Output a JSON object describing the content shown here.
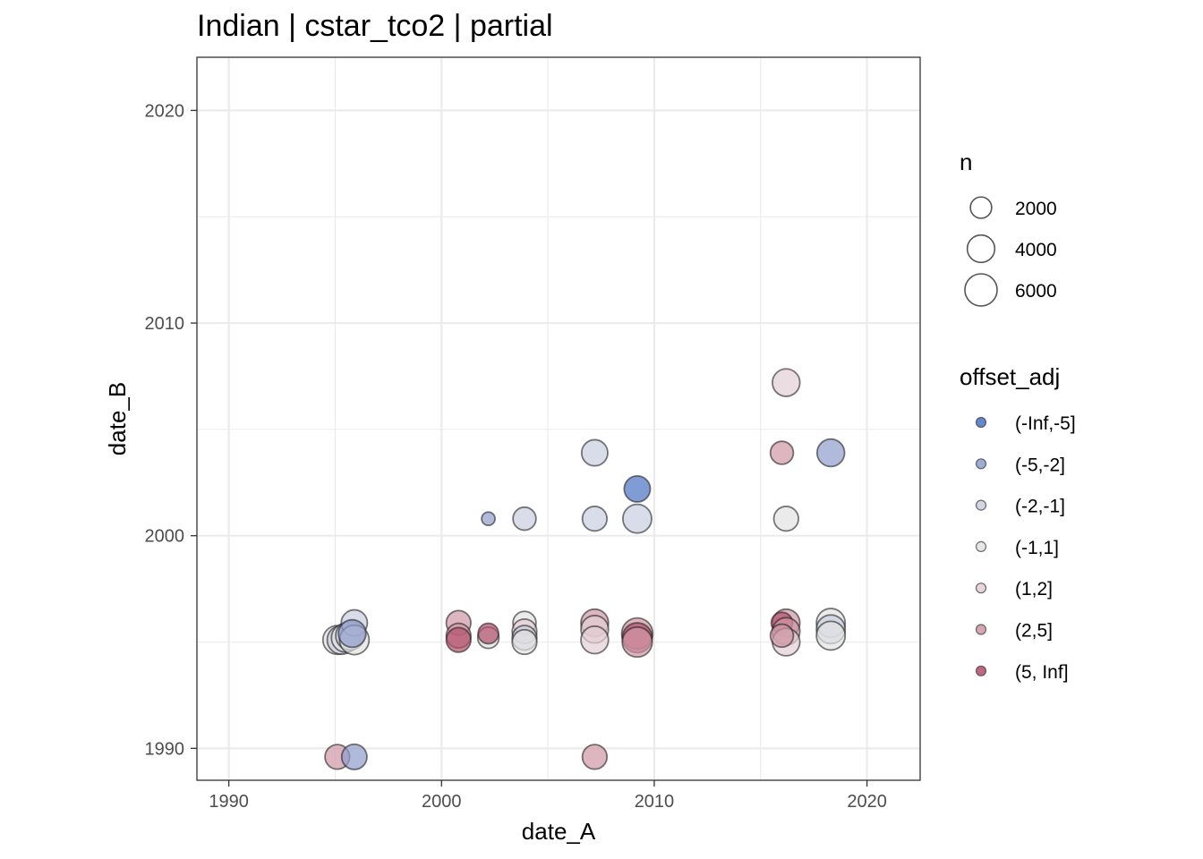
{
  "chart_data": {
    "type": "scatter",
    "title": "Indian | cstar_tco2 | partial",
    "xlabel": "date_A",
    "ylabel": "date_B",
    "xlim": [
      1988.5,
      2022.5
    ],
    "ylim": [
      1988.5,
      2022.5
    ],
    "x_ticks": [
      1990,
      2000,
      2010,
      2020
    ],
    "y_ticks": [
      1990,
      2000,
      2010,
      2020
    ],
    "grid": true,
    "size_legend": {
      "title": "n",
      "entries": [
        {
          "label": "2000",
          "value": 2000
        },
        {
          "label": "4000",
          "value": 4000
        },
        {
          "label": "6000",
          "value": 6000
        }
      ]
    },
    "color_legend": {
      "title": "offset_adj",
      "entries": [
        {
          "label": "(-Inf,-5]",
          "color": "#4a72c2"
        },
        {
          "label": "(-5,-2]",
          "color": "#8e9ccc"
        },
        {
          "label": "(-2,-1]",
          "color": "#c9cedf"
        },
        {
          "label": "(-1,1]",
          "color": "#e2e2e2"
        },
        {
          "label": "(1,2]",
          "color": "#e2cfd4"
        },
        {
          "label": "(2,5]",
          "color": "#cf97a5"
        },
        {
          "label": "(5, Inf]",
          "color": "#b24e6a"
        }
      ]
    },
    "points": [
      {
        "x": 1995.1,
        "y": 1995.1,
        "n": 4500,
        "cat": "(-1,1]"
      },
      {
        "x": 1995.3,
        "y": 1995.1,
        "n": 4500,
        "cat": "(-2,-1]"
      },
      {
        "x": 1995.5,
        "y": 1995.2,
        "n": 4500,
        "cat": "(-1,1]"
      },
      {
        "x": 1995.7,
        "y": 1995.3,
        "n": 4500,
        "cat": "(-2,-1]"
      },
      {
        "x": 1995.9,
        "y": 1995.9,
        "n": 3500,
        "cat": "(-2,-1]"
      },
      {
        "x": 1995.9,
        "y": 1995.1,
        "n": 4800,
        "cat": "(-1,1]"
      },
      {
        "x": 1995.8,
        "y": 1995.4,
        "n": 4000,
        "cat": "(-5,-2]"
      },
      {
        "x": 1995.1,
        "y": 1989.6,
        "n": 3000,
        "cat": "(2,5]"
      },
      {
        "x": 1995.9,
        "y": 1989.6,
        "n": 3200,
        "cat": "(-5,-2]"
      },
      {
        "x": 2000.8,
        "y": 1995.9,
        "n": 3000,
        "cat": "(2,5]"
      },
      {
        "x": 2000.8,
        "y": 1995.3,
        "n": 3000,
        "cat": "(2,5]"
      },
      {
        "x": 2000.8,
        "y": 1995.1,
        "n": 3000,
        "cat": "(5, Inf]"
      },
      {
        "x": 2002.2,
        "y": 2000.8,
        "n": 450,
        "cat": "(-5,-2]"
      },
      {
        "x": 2002.2,
        "y": 1995.2,
        "n": 2000,
        "cat": "(-1,1]"
      },
      {
        "x": 2002.2,
        "y": 1995.4,
        "n": 1800,
        "cat": "(5, Inf]"
      },
      {
        "x": 2003.9,
        "y": 2000.8,
        "n": 2500,
        "cat": "(-2,-1]"
      },
      {
        "x": 2003.9,
        "y": 1995.9,
        "n": 2500,
        "cat": "(-1,1]"
      },
      {
        "x": 2003.9,
        "y": 1995.5,
        "n": 3000,
        "cat": "(1,2]"
      },
      {
        "x": 2003.9,
        "y": 1995.2,
        "n": 3000,
        "cat": "(-2,-1]"
      },
      {
        "x": 2003.9,
        "y": 1995.0,
        "n": 3000,
        "cat": "(-1,1]"
      },
      {
        "x": 2007.2,
        "y": 2003.9,
        "n": 3500,
        "cat": "(-2,-1]"
      },
      {
        "x": 2007.2,
        "y": 2000.8,
        "n": 3000,
        "cat": "(-2,-1]"
      },
      {
        "x": 2007.2,
        "y": 1995.9,
        "n": 4000,
        "cat": "(2,5]"
      },
      {
        "x": 2007.2,
        "y": 1995.6,
        "n": 4000,
        "cat": "(1,2]"
      },
      {
        "x": 2007.2,
        "y": 1995.1,
        "n": 4000,
        "cat": "(1,2]"
      },
      {
        "x": 2007.2,
        "y": 1989.6,
        "n": 3000,
        "cat": "(2,5]"
      },
      {
        "x": 2009.2,
        "y": 2002.2,
        "n": 3500,
        "cat": "(-Inf,-5]"
      },
      {
        "x": 2009.2,
        "y": 2000.8,
        "n": 4500,
        "cat": "(-2,-1]"
      },
      {
        "x": 2009.2,
        "y": 1995.4,
        "n": 5500,
        "cat": "(2,5]"
      },
      {
        "x": 2009.2,
        "y": 1995.2,
        "n": 5000,
        "cat": "(5, Inf]"
      },
      {
        "x": 2009.2,
        "y": 1995.0,
        "n": 5000,
        "cat": "(2,5]"
      },
      {
        "x": 2016.2,
        "y": 2007.2,
        "n": 4000,
        "cat": "(1,2]"
      },
      {
        "x": 2016.0,
        "y": 2003.9,
        "n": 2500,
        "cat": "(2,5]"
      },
      {
        "x": 2016.2,
        "y": 2000.8,
        "n": 3000,
        "cat": "(-1,1]"
      },
      {
        "x": 2016.2,
        "y": 1995.9,
        "n": 4000,
        "cat": "(2,5]"
      },
      {
        "x": 2016.0,
        "y": 1995.9,
        "n": 2000,
        "cat": "(5, Inf]"
      },
      {
        "x": 2016.2,
        "y": 1995.5,
        "n": 4000,
        "cat": "(2,5]"
      },
      {
        "x": 2016.2,
        "y": 1995.0,
        "n": 4000,
        "cat": "(1,2]"
      },
      {
        "x": 2016.0,
        "y": 1995.3,
        "n": 2500,
        "cat": "(2,5]"
      },
      {
        "x": 2018.3,
        "y": 2003.9,
        "n": 4000,
        "cat": "(-5,-2]"
      },
      {
        "x": 2018.3,
        "y": 1995.9,
        "n": 4500,
        "cat": "(-1,1]"
      },
      {
        "x": 2018.3,
        "y": 1995.6,
        "n": 4500,
        "cat": "(-2,-1]"
      },
      {
        "x": 2018.3,
        "y": 1995.3,
        "n": 4500,
        "cat": "(-1,1]"
      }
    ]
  }
}
